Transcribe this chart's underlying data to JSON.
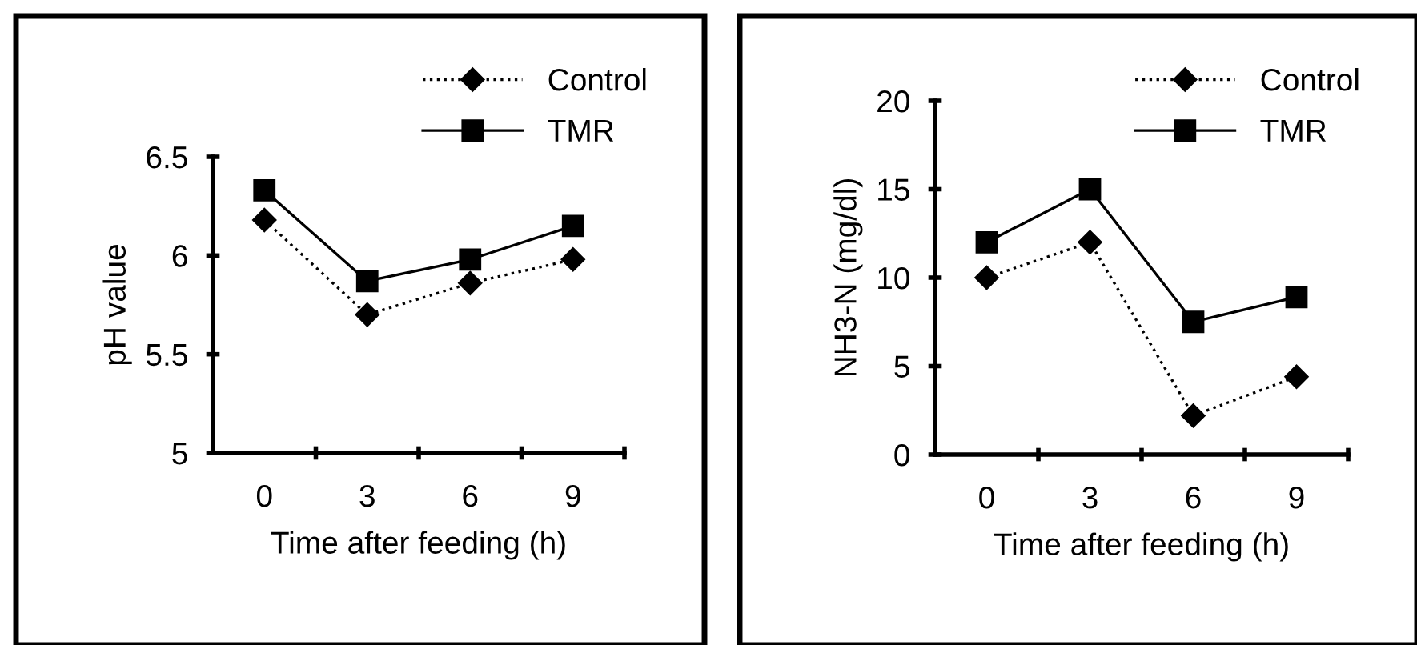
{
  "chart_data": [
    {
      "type": "line",
      "categories": [
        "0",
        "3",
        "6",
        "9"
      ],
      "xlabel": "Time after feeding (h)",
      "ylabel": "pH value",
      "ylim": [
        5,
        6.5
      ],
      "yticks": [
        5,
        5.5,
        6,
        6.5
      ],
      "legend": "top right",
      "grid": false,
      "series": [
        {
          "name": "Control",
          "color": "#000000",
          "values": [
            6.18,
            5.7,
            5.86,
            5.98
          ],
          "marker": "diamond",
          "line_style": "dotted"
        },
        {
          "name": "TMR",
          "color": "#000000",
          "values": [
            6.33,
            5.87,
            5.98,
            6.15
          ],
          "marker": "square",
          "line_style": "solid"
        }
      ]
    },
    {
      "type": "line",
      "categories": [
        "0",
        "3",
        "6",
        "9"
      ],
      "xlabel": "Time after feeding (h)",
      "ylabel": "NH3-N (mg/dl)",
      "ylim": [
        0,
        20
      ],
      "yticks": [
        0,
        5,
        10,
        15,
        20
      ],
      "legend": "top right",
      "grid": false,
      "series": [
        {
          "name": "Control",
          "color": "#000000",
          "values": [
            10.0,
            12.0,
            2.2,
            4.4
          ],
          "marker": "diamond",
          "line_style": "dotted"
        },
        {
          "name": "TMR",
          "color": "#000000",
          "values": [
            12.0,
            15.0,
            7.5,
            8.9
          ],
          "marker": "square",
          "line_style": "solid"
        }
      ]
    }
  ]
}
